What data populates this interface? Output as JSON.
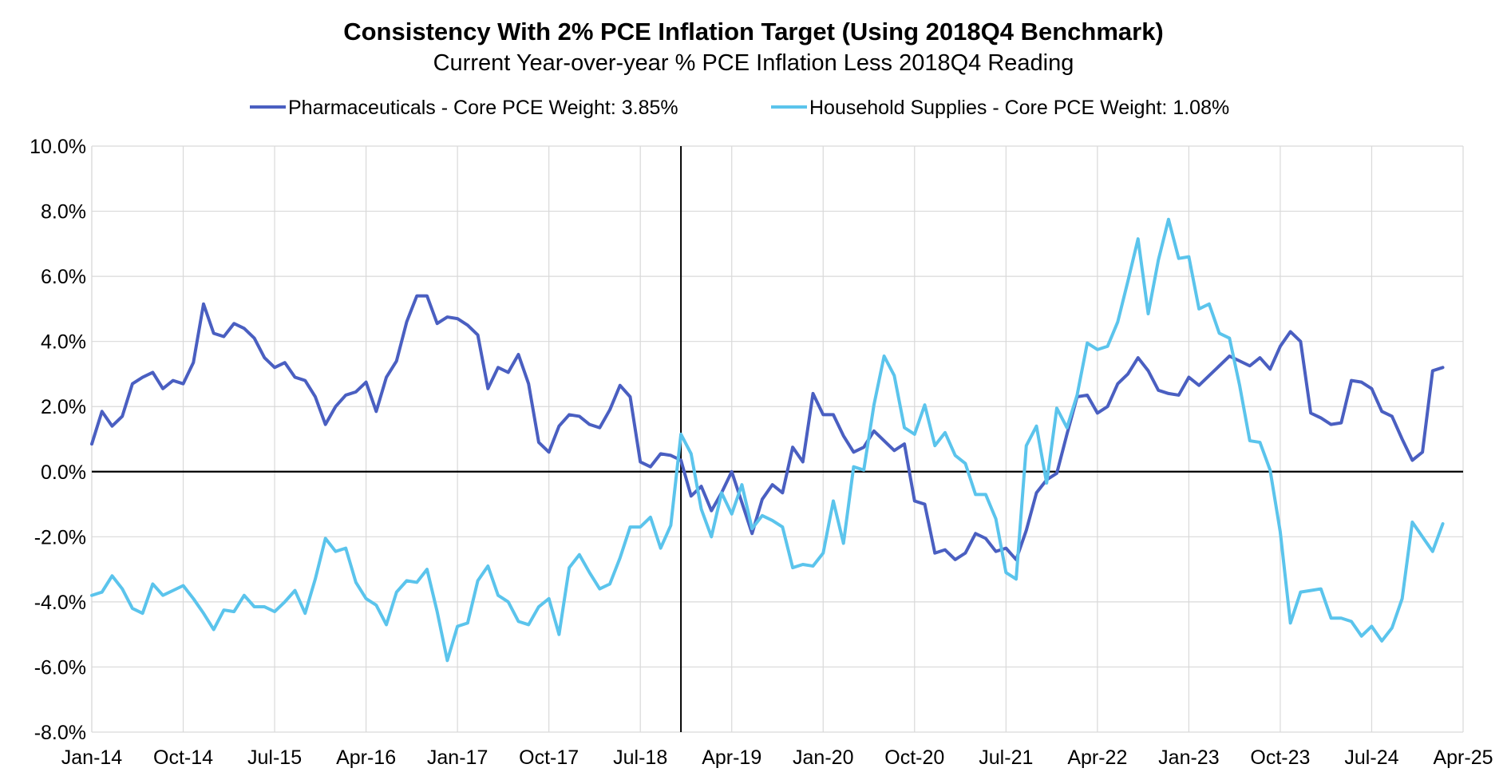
{
  "chart_data": {
    "type": "line",
    "title": "Consistency With 2% PCE Inflation Target (Using 2018Q4 Benchmark)",
    "subtitle": "Current Year-over-year % PCE Inflation Less 2018Q4 Reading",
    "xlabel": "",
    "ylabel": "",
    "ylim": [
      -8,
      10
    ],
    "yticks": [
      -8,
      -6,
      -4,
      -2,
      0,
      2,
      4,
      6,
      8,
      10
    ],
    "ytick_labels": [
      "-8.0%",
      "-6.0%",
      "-4.0%",
      "-2.0%",
      "0.0%",
      "2.0%",
      "4.0%",
      "6.0%",
      "8.0%",
      "10.0%"
    ],
    "x_start": "Jan-14",
    "x_month_range": [
      0,
      135
    ],
    "xtick_months": [
      0,
      9,
      18,
      27,
      36,
      45,
      54,
      63,
      72,
      81,
      90,
      99,
      108,
      117,
      126,
      135
    ],
    "xtick_labels": [
      "Jan-14",
      "Oct-14",
      "Jul-15",
      "Apr-16",
      "Jan-17",
      "Oct-17",
      "Jul-18",
      "Apr-19",
      "Jan-20",
      "Oct-20",
      "Jul-21",
      "Apr-22",
      "Jan-23",
      "Oct-23",
      "Jul-24",
      "Apr-25"
    ],
    "benchmark_month": 58,
    "grid": true,
    "legend_position": "top",
    "series": [
      {
        "name": "Pharmaceuticals - Core PCE Weight: 3.85%",
        "color": "#4a5fc1",
        "values": [
          0.85,
          1.85,
          1.4,
          1.7,
          2.7,
          2.9,
          3.05,
          2.55,
          2.8,
          2.7,
          3.35,
          5.15,
          4.25,
          4.15,
          4.55,
          4.4,
          4.1,
          3.5,
          3.2,
          3.35,
          2.9,
          2.8,
          2.3,
          1.45,
          2.0,
          2.35,
          2.45,
          2.75,
          1.85,
          2.9,
          3.4,
          4.6,
          5.4,
          5.4,
          4.55,
          4.75,
          4.7,
          4.5,
          4.2,
          2.55,
          3.2,
          3.05,
          3.6,
          2.7,
          0.9,
          0.6,
          1.4,
          1.75,
          1.7,
          1.45,
          1.35,
          1.9,
          2.65,
          2.3,
          0.3,
          0.15,
          0.55,
          0.5,
          0.35,
          -0.75,
          -0.45,
          -1.2,
          -0.65,
          0.0,
          -0.95,
          -1.9,
          -0.85,
          -0.4,
          -0.65,
          0.75,
          0.3,
          2.4,
          1.75,
          1.75,
          1.1,
          0.6,
          0.75,
          1.25,
          0.95,
          0.65,
          0.85,
          -0.9,
          -1.0,
          -2.5,
          -2.4,
          -2.7,
          -2.5,
          -1.9,
          -2.05,
          -2.45,
          -2.35,
          -2.7,
          -1.8,
          -0.65,
          -0.25,
          -0.05,
          1.15,
          2.3,
          2.35,
          1.8,
          2.0,
          2.7,
          3.0,
          3.5,
          3.1,
          2.5,
          2.4,
          2.35,
          2.9,
          2.65,
          2.95,
          3.25,
          3.55,
          3.4,
          3.25,
          3.5,
          3.15,
          3.85,
          4.3,
          4.0,
          1.8,
          1.65,
          1.45,
          1.5,
          2.8,
          2.75,
          2.55,
          1.85,
          1.7,
          1.0,
          0.35,
          0.6,
          3.1,
          3.2
        ],
        "end_month": 133
      },
      {
        "name": "Household Supplies - Core PCE Weight: 1.08%",
        "color": "#5bc4ec",
        "values": [
          -3.8,
          -3.7,
          -3.2,
          -3.6,
          -4.2,
          -4.35,
          -3.45,
          -3.8,
          -3.65,
          -3.5,
          -3.9,
          -4.35,
          -4.85,
          -4.25,
          -4.3,
          -3.8,
          -4.15,
          -4.15,
          -4.3,
          -4.0,
          -3.65,
          -4.35,
          -3.3,
          -2.05,
          -2.45,
          -2.35,
          -3.4,
          -3.9,
          -4.1,
          -4.7,
          -3.7,
          -3.35,
          -3.4,
          -3.0,
          -4.3,
          -5.8,
          -4.75,
          -4.65,
          -3.35,
          -2.9,
          -3.8,
          -4.0,
          -4.6,
          -4.7,
          -4.15,
          -3.9,
          -5.0,
          -2.95,
          -2.55,
          -3.1,
          -3.6,
          -3.45,
          -2.65,
          -1.7,
          -1.7,
          -1.4,
          -2.35,
          -1.65,
          1.15,
          0.55,
          -1.15,
          -2.0,
          -0.65,
          -1.3,
          -0.4,
          -1.75,
          -1.35,
          -1.5,
          -1.7,
          -2.95,
          -2.85,
          -2.9,
          -2.5,
          -0.9,
          -2.2,
          0.15,
          0.05,
          2.05,
          3.55,
          2.95,
          1.35,
          1.15,
          2.05,
          0.8,
          1.2,
          0.5,
          0.25,
          -0.7,
          -0.7,
          -1.45,
          -3.1,
          -3.3,
          0.8,
          1.4,
          -0.35,
          1.95,
          1.35,
          2.35,
          3.95,
          3.75,
          3.85,
          4.6,
          5.85,
          7.15,
          4.85,
          6.5,
          7.75,
          6.55,
          6.6,
          5.0,
          5.15,
          4.25,
          4.1,
          2.65,
          0.95,
          0.9,
          0.05,
          -1.85,
          -4.65,
          -3.7,
          -3.65,
          -3.6,
          -4.5,
          -4.5,
          -4.6,
          -5.05,
          -4.75,
          -5.2,
          -4.8,
          -3.9,
          -1.55,
          -2.0,
          -2.45,
          -1.6
        ],
        "end_month": 133
      }
    ]
  }
}
